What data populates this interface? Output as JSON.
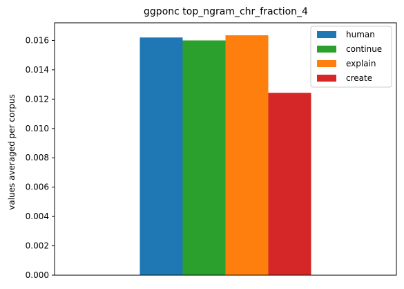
{
  "chart_data": {
    "type": "bar",
    "title": "ggponc top_ngram_chr_fraction_4",
    "xlabel": "",
    "ylabel": "values averaged per corpus",
    "ylim": [
      0,
      0.0172
    ],
    "yticks": [
      "0.000",
      "0.002",
      "0.004",
      "0.006",
      "0.008",
      "0.010",
      "0.012",
      "0.014",
      "0.016"
    ],
    "categories": [
      ""
    ],
    "series": [
      {
        "name": "human",
        "values": [
          0.0162
        ],
        "color": "#1f77b4"
      },
      {
        "name": "continue",
        "values": [
          0.016
        ],
        "color": "#2ca02c"
      },
      {
        "name": "explain",
        "values": [
          0.01635
        ],
        "color": "#ff7f0e"
      },
      {
        "name": "create",
        "values": [
          0.01243
        ],
        "color": "#d62728"
      }
    ],
    "legend_position": "top-right",
    "grid": false
  }
}
